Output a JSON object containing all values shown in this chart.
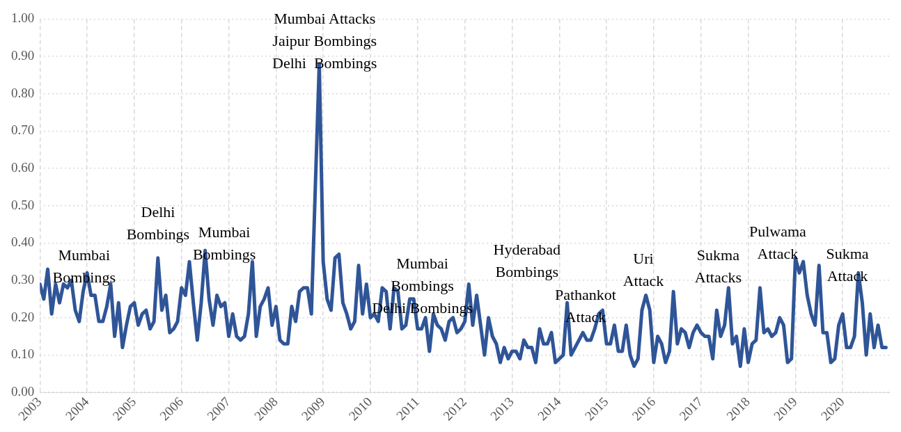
{
  "chart_data": {
    "type": "line",
    "xlim": [
      "2003-01",
      "2021-01"
    ],
    "ylim": [
      0,
      1
    ],
    "xticks": [
      "2003",
      "2004",
      "2005",
      "2006",
      "2007",
      "2008",
      "2009",
      "2010",
      "2011",
      "2012",
      "2013",
      "2014",
      "2015",
      "2016",
      "2017",
      "2018",
      "2019",
      "2020"
    ],
    "yticks": [
      {
        "value": 0,
        "label": "0.00"
      },
      {
        "value": 0.1,
        "label": "0.10"
      },
      {
        "value": 0.2,
        "label": "0.20"
      },
      {
        "value": 0.3,
        "label": "0.30"
      },
      {
        "value": 0.4,
        "label": "0.40"
      },
      {
        "value": 0.5,
        "label": "0.50"
      },
      {
        "value": 0.6,
        "label": "0.60"
      },
      {
        "value": 0.7,
        "label": "0.70"
      },
      {
        "value": 0.8,
        "label": "0.80"
      },
      {
        "value": 0.9,
        "label": "0.90"
      },
      {
        "value": 1,
        "label": "1.00"
      }
    ],
    "grid": true,
    "legend": false,
    "marker": "none",
    "line_style": "solid",
    "x": [
      "2003-01",
      "2003-02",
      "2003-03",
      "2003-04",
      "2003-05",
      "2003-06",
      "2003-07",
      "2003-08",
      "2003-09",
      "2003-10",
      "2003-11",
      "2003-12",
      "2004-01",
      "2004-02",
      "2004-03",
      "2004-04",
      "2004-05",
      "2004-06",
      "2004-07",
      "2004-08",
      "2004-09",
      "2004-10",
      "2004-11",
      "2004-12",
      "2005-01",
      "2005-02",
      "2005-03",
      "2005-04",
      "2005-05",
      "2005-06",
      "2005-07",
      "2005-08",
      "2005-09",
      "2005-10",
      "2005-11",
      "2005-12",
      "2006-01",
      "2006-02",
      "2006-03",
      "2006-04",
      "2006-05",
      "2006-06",
      "2006-07",
      "2006-08",
      "2006-09",
      "2006-10",
      "2006-11",
      "2006-12",
      "2007-01",
      "2007-02",
      "2007-03",
      "2007-04",
      "2007-05",
      "2007-06",
      "2007-07",
      "2007-08",
      "2007-09",
      "2007-10",
      "2007-11",
      "2007-12",
      "2008-01",
      "2008-02",
      "2008-03",
      "2008-04",
      "2008-05",
      "2008-06",
      "2008-07",
      "2008-08",
      "2008-09",
      "2008-10",
      "2008-11",
      "2008-12",
      "2009-01",
      "2009-02",
      "2009-03",
      "2009-04",
      "2009-05",
      "2009-06",
      "2009-07",
      "2009-08",
      "2009-09",
      "2009-10",
      "2009-11",
      "2009-12",
      "2010-01",
      "2010-02",
      "2010-03",
      "2010-04",
      "2010-05",
      "2010-06",
      "2010-07",
      "2010-08",
      "2010-09",
      "2010-10",
      "2010-11",
      "2010-12",
      "2011-01",
      "2011-02",
      "2011-03",
      "2011-04",
      "2011-05",
      "2011-06",
      "2011-07",
      "2011-08",
      "2011-09",
      "2011-10",
      "2011-11",
      "2011-12",
      "2012-01",
      "2012-02",
      "2012-03",
      "2012-04",
      "2012-05",
      "2012-06",
      "2012-07",
      "2012-08",
      "2012-09",
      "2012-10",
      "2012-11",
      "2012-12",
      "2013-01",
      "2013-02",
      "2013-03",
      "2013-04",
      "2013-05",
      "2013-06",
      "2013-07",
      "2013-08",
      "2013-09",
      "2013-10",
      "2013-11",
      "2013-12",
      "2014-01",
      "2014-02",
      "2014-03",
      "2014-04",
      "2014-05",
      "2014-06",
      "2014-07",
      "2014-08",
      "2014-09",
      "2014-10",
      "2014-11",
      "2014-12",
      "2015-01",
      "2015-02",
      "2015-03",
      "2015-04",
      "2015-05",
      "2015-06",
      "2015-07",
      "2015-08",
      "2015-09",
      "2015-10",
      "2015-11",
      "2015-12",
      "2016-01",
      "2016-02",
      "2016-03",
      "2016-04",
      "2016-05",
      "2016-06",
      "2016-07",
      "2016-08",
      "2016-09",
      "2016-10",
      "2016-11",
      "2016-12",
      "2017-01",
      "2017-02",
      "2017-03",
      "2017-04",
      "2017-05",
      "2017-06",
      "2017-07",
      "2017-08",
      "2017-09",
      "2017-10",
      "2017-11",
      "2017-12",
      "2018-01",
      "2018-02",
      "2018-03",
      "2018-04",
      "2018-05",
      "2018-06",
      "2018-07",
      "2018-08",
      "2018-09",
      "2018-10",
      "2018-11",
      "2018-12",
      "2019-01",
      "2019-02",
      "2019-03",
      "2019-04",
      "2019-05",
      "2019-06",
      "2019-07",
      "2019-08",
      "2019-09",
      "2019-10",
      "2019-11",
      "2019-12",
      "2020-01",
      "2020-02",
      "2020-03",
      "2020-04",
      "2020-05",
      "2020-06",
      "2020-07",
      "2020-08",
      "2020-09",
      "2020-10",
      "2020-11",
      "2020-12"
    ],
    "series": [
      {
        "color": "#2f5597",
        "values": [
          0.29,
          0.25,
          0.33,
          0.21,
          0.29,
          0.24,
          0.29,
          0.28,
          0.3,
          0.22,
          0.19,
          0.27,
          0.32,
          0.26,
          0.26,
          0.19,
          0.19,
          0.23,
          0.29,
          0.15,
          0.24,
          0.12,
          0.18,
          0.23,
          0.24,
          0.18,
          0.21,
          0.22,
          0.17,
          0.19,
          0.36,
          0.22,
          0.26,
          0.16,
          0.17,
          0.19,
          0.28,
          0.26,
          0.35,
          0.24,
          0.14,
          0.24,
          0.38,
          0.25,
          0.18,
          0.26,
          0.23,
          0.24,
          0.15,
          0.21,
          0.15,
          0.14,
          0.15,
          0.21,
          0.35,
          0.15,
          0.23,
          0.25,
          0.28,
          0.18,
          0.23,
          0.14,
          0.13,
          0.13,
          0.23,
          0.19,
          0.27,
          0.28,
          0.28,
          0.21,
          0.55,
          0.88,
          0.35,
          0.25,
          0.22,
          0.36,
          0.37,
          0.24,
          0.21,
          0.17,
          0.19,
          0.34,
          0.21,
          0.29,
          0.2,
          0.21,
          0.19,
          0.28,
          0.27,
          0.17,
          0.28,
          0.27,
          0.17,
          0.18,
          0.25,
          0.25,
          0.17,
          0.17,
          0.2,
          0.11,
          0.21,
          0.18,
          0.17,
          0.14,
          0.19,
          0.2,
          0.16,
          0.17,
          0.19,
          0.29,
          0.18,
          0.26,
          0.18,
          0.1,
          0.2,
          0.15,
          0.13,
          0.08,
          0.12,
          0.09,
          0.11,
          0.11,
          0.09,
          0.14,
          0.12,
          0.12,
          0.08,
          0.17,
          0.13,
          0.13,
          0.16,
          0.08,
          0.09,
          0.1,
          0.24,
          0.1,
          0.12,
          0.14,
          0.16,
          0.14,
          0.14,
          0.17,
          0.21,
          0.22,
          0.13,
          0.13,
          0.18,
          0.11,
          0.11,
          0.18,
          0.1,
          0.07,
          0.09,
          0.22,
          0.26,
          0.22,
          0.08,
          0.15,
          0.13,
          0.08,
          0.11,
          0.27,
          0.13,
          0.17,
          0.16,
          0.12,
          0.16,
          0.18,
          0.16,
          0.15,
          0.15,
          0.09,
          0.22,
          0.15,
          0.18,
          0.28,
          0.13,
          0.15,
          0.07,
          0.17,
          0.08,
          0.13,
          0.14,
          0.28,
          0.16,
          0.17,
          0.15,
          0.16,
          0.2,
          0.18,
          0.08,
          0.09,
          0.36,
          0.32,
          0.35,
          0.26,
          0.21,
          0.18,
          0.34,
          0.16,
          0.16,
          0.08,
          0.09,
          0.18,
          0.21,
          0.12,
          0.12,
          0.15,
          0.32,
          0.24,
          0.1,
          0.21,
          0.12,
          0.18,
          0.12,
          0.12
        ]
      }
    ],
    "annotations": [
      "Mumbai\nBombings",
      "Delhi\nBombings",
      "Mumbai\nBombings",
      "Mumbai Attacks\nJaipur Bombings\nDelhi  Bombings",
      "Mumbai\nBombings\nDelhi Bombings",
      "Hyderabad\nBombings",
      "Pathankot\nAttack",
      "Uri\nAttack",
      "Sukma\nAttacks",
      "Pulwama\nAttack",
      "Sukma\nAttack"
    ]
  }
}
